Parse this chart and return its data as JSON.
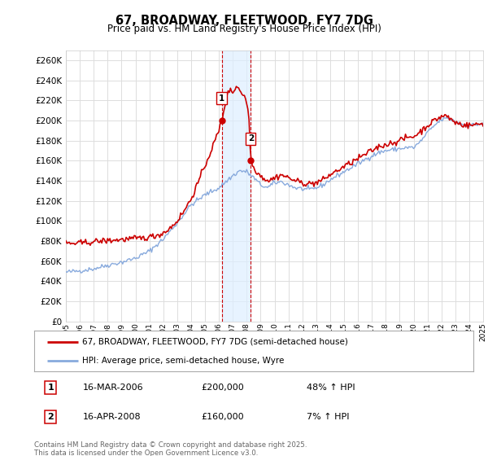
{
  "title": "67, BROADWAY, FLEETWOOD, FY7 7DG",
  "subtitle": "Price paid vs. HM Land Registry's House Price Index (HPI)",
  "ylabel_ticks": [
    0,
    20000,
    40000,
    60000,
    80000,
    100000,
    120000,
    140000,
    160000,
    180000,
    200000,
    220000,
    240000,
    260000
  ],
  "ylim": [
    0,
    270000
  ],
  "sale1_date": "16-MAR-2006",
  "sale1_price": 200000,
  "sale1_pct": "48%",
  "sale2_date": "16-APR-2008",
  "sale2_price": 160000,
  "sale2_pct": "7%",
  "sale1_x": 2006.21,
  "sale2_x": 2008.29,
  "legend1": "67, BROADWAY, FLEETWOOD, FY7 7DG (semi-detached house)",
  "legend2": "HPI: Average price, semi-detached house, Wyre",
  "footer": "Contains HM Land Registry data © Crown copyright and database right 2025.\nThis data is licensed under the Open Government Licence v3.0.",
  "line_color_red": "#cc0000",
  "line_color_blue": "#88aadd",
  "vline_color": "#cc0000",
  "fill_color": "#ddeeff",
  "background_color": "#ffffff",
  "grid_color": "#dddddd"
}
